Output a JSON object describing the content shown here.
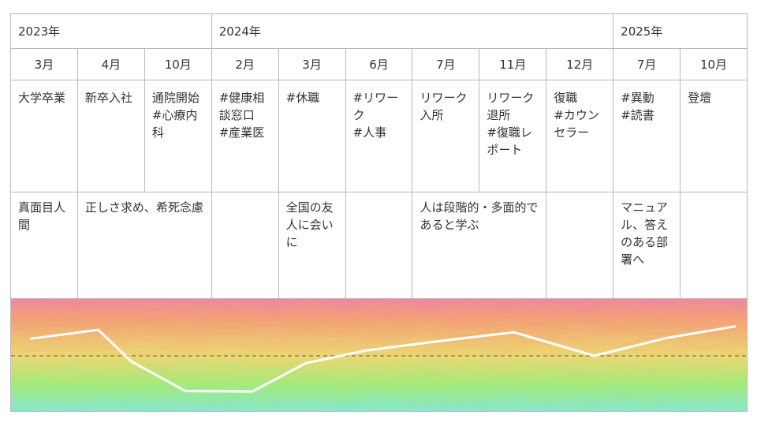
{
  "years": [
    {
      "label": "2023年",
      "span": 3
    },
    {
      "label": "2024年",
      "span": 6
    },
    {
      "label": "2025年",
      "span": 2
    }
  ],
  "months": [
    "3月",
    "4月",
    "10月",
    "2月",
    "3月",
    "6月",
    "7月",
    "11月",
    "12月",
    "7月",
    "10月"
  ],
  "events": [
    {
      "text": "大学卒業"
    },
    {
      "text": "新卒入社"
    },
    {
      "text": "通院開始\n#心療内科"
    },
    {
      "text": "#健康相談窓口\n#産業医"
    },
    {
      "text": "#休職"
    },
    {
      "text": "#リワーク\n#人事"
    },
    {
      "text": "リワーク入所"
    },
    {
      "text": "リワーク退所\n#復職レポート"
    },
    {
      "text": "復職\n#カウンセラー"
    },
    {
      "text": "#異動\n#読書"
    },
    {
      "text": "登壇"
    }
  ],
  "feelings": [
    {
      "text": "真面目人間",
      "span": 1
    },
    {
      "text": "正しさ求め、希死念慮",
      "span": 2
    },
    {
      "text": "",
      "span": 1
    },
    {
      "text": "全国の友人に会いに",
      "span": 1
    },
    {
      "text": "",
      "span": 1
    },
    {
      "text": "人は段階的・多面的であると学ぶ",
      "span": 2
    },
    {
      "text": "",
      "span": 1
    },
    {
      "text": "マニュアル、答えのある部署へ",
      "span": 1
    },
    {
      "text": "",
      "span": 1
    }
  ],
  "chart_data": {
    "type": "line",
    "categories": [
      "2023年3月",
      "2023年4月",
      "2023年10月",
      "2024年2月",
      "2024年3月",
      "2024年6月",
      "2024年7月",
      "2024年11月",
      "2024年12月",
      "2025年7月",
      "2025年10月"
    ],
    "series": [
      {
        "values": [
          0.35,
          0.53,
          -0.12,
          -0.72,
          -0.73,
          -0.15,
          0.11,
          0.32,
          0.48,
          0.0,
          0.37,
          0.6
        ]
      }
    ],
    "x": [
      0.0,
      1.0,
      1.5,
      2.3,
      3.3,
      4.1,
      5.0,
      6.2,
      7.2,
      8.4,
      9.5,
      10.5
    ],
    "ylim": [
      -1,
      1
    ],
    "baseline": 0,
    "line_color": "#ffffff",
    "background_gradient": [
      "#ee7fae",
      "#f3a176",
      "#ecd672",
      "#a4ea7a",
      "#7ce6ea"
    ]
  }
}
